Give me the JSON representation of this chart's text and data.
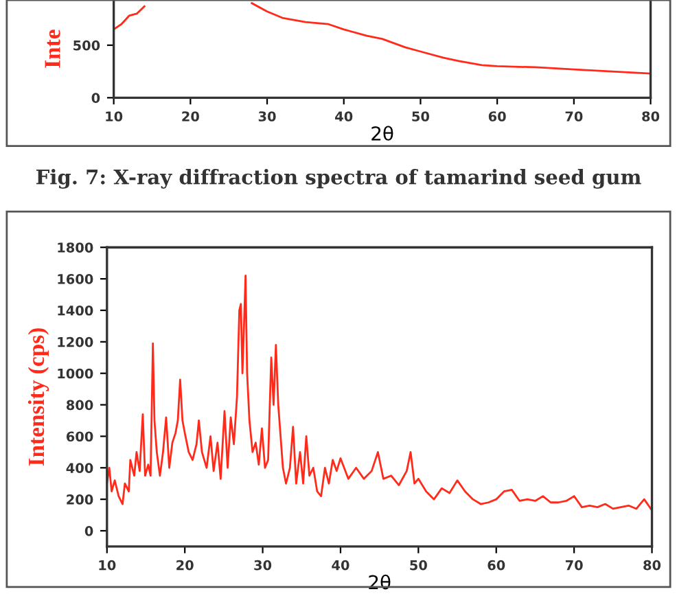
{
  "chart_data": [
    {
      "type": "line",
      "xlabel": "2θ",
      "ylabel": "Inte",
      "xlim": [
        10,
        80
      ],
      "ylim": [
        0,
        930
      ],
      "xticks": [
        10,
        20,
        30,
        40,
        50,
        60,
        70,
        80
      ],
      "yticks": [
        0,
        500
      ],
      "grid": false,
      "legend": false,
      "annotations": [
        "Fig. 7: X-ray diffraction spectra of tamarind seed gum"
      ],
      "series": [
        {
          "color": "#ff2a1a",
          "x": [
            10,
            11,
            12,
            13,
            14,
            15,
            16,
            20,
            26,
            27.5,
            28,
            30,
            32,
            35,
            38,
            40,
            43,
            45,
            48,
            50,
            53,
            55,
            58,
            60,
            65,
            70,
            75,
            80
          ],
          "values": [
            650,
            700,
            780,
            800,
            870,
            null,
            null,
            null,
            null,
            null,
            900,
            820,
            760,
            720,
            700,
            650,
            590,
            560,
            480,
            440,
            380,
            350,
            310,
            300,
            290,
            270,
            250,
            230
          ]
        }
      ]
    },
    {
      "type": "line",
      "xlabel": "2θ",
      "ylabel": "Intensity (cps)",
      "xlim": [
        10,
        80
      ],
      "ylim": [
        -100,
        1800
      ],
      "xticks": [
        10,
        20,
        30,
        40,
        50,
        60,
        70,
        80
      ],
      "yticks": [
        0,
        200,
        400,
        600,
        800,
        1000,
        1200,
        1400,
        1600,
        1800
      ],
      "grid": false,
      "legend": false,
      "series": [
        {
          "color": "#ff2a1a",
          "x": [
            10,
            10.3,
            10.6,
            11,
            11.5,
            12,
            12.3,
            12.8,
            13,
            13.5,
            13.8,
            14.2,
            14.6,
            14.9,
            15.3,
            15.6,
            15.9,
            16.1,
            16.4,
            16.8,
            17.2,
            17.6,
            18,
            18.4,
            18.8,
            19.1,
            19.4,
            19.7,
            20,
            20.5,
            21,
            21.5,
            21.8,
            22.2,
            22.8,
            23.3,
            23.7,
            24.2,
            24.6,
            25.1,
            25.5,
            25.9,
            26.3,
            26.7,
            27,
            27.2,
            27.4,
            27.6,
            27.8,
            28,
            28.3,
            28.7,
            29.1,
            29.5,
            29.9,
            30.3,
            30.7,
            31.1,
            31.4,
            31.7,
            32,
            32.3,
            32.6,
            33,
            33.5,
            33.9,
            34.3,
            34.8,
            35.2,
            35.6,
            36,
            36.5,
            37,
            37.5,
            38,
            38.5,
            39,
            39.5,
            40,
            41,
            42,
            43,
            44,
            44.8,
            45.5,
            46.5,
            47.5,
            48.5,
            49,
            49.5,
            50,
            51,
            52,
            53,
            54,
            55,
            56,
            57,
            58,
            59,
            60,
            61,
            62,
            63,
            64,
            65,
            66,
            67,
            68,
            69,
            70,
            71,
            72,
            73,
            74,
            75,
            76,
            77,
            78,
            79,
            80
          ],
          "values": [
            300,
            400,
            250,
            320,
            220,
            170,
            300,
            250,
            450,
            350,
            500,
            380,
            740,
            350,
            420,
            350,
            1190,
            700,
            500,
            350,
            500,
            720,
            400,
            560,
            620,
            700,
            960,
            700,
            620,
            500,
            450,
            550,
            700,
            500,
            400,
            600,
            380,
            560,
            330,
            760,
            400,
            720,
            550,
            850,
            1400,
            1440,
            1000,
            1300,
            1620,
            1000,
            700,
            500,
            560,
            420,
            650,
            400,
            450,
            1100,
            800,
            1180,
            800,
            600,
            400,
            300,
            400,
            660,
            300,
            500,
            300,
            600,
            350,
            400,
            250,
            220,
            400,
            300,
            450,
            380,
            460,
            330,
            400,
            330,
            380,
            500,
            330,
            350,
            290,
            380,
            500,
            300,
            330,
            250,
            200,
            270,
            240,
            320,
            250,
            200,
            170,
            180,
            200,
            250,
            260,
            190,
            200,
            190,
            220,
            180,
            180,
            190,
            220,
            150,
            160,
            150,
            170,
            140,
            150,
            160,
            140,
            200,
            130
          ]
        }
      ]
    }
  ]
}
